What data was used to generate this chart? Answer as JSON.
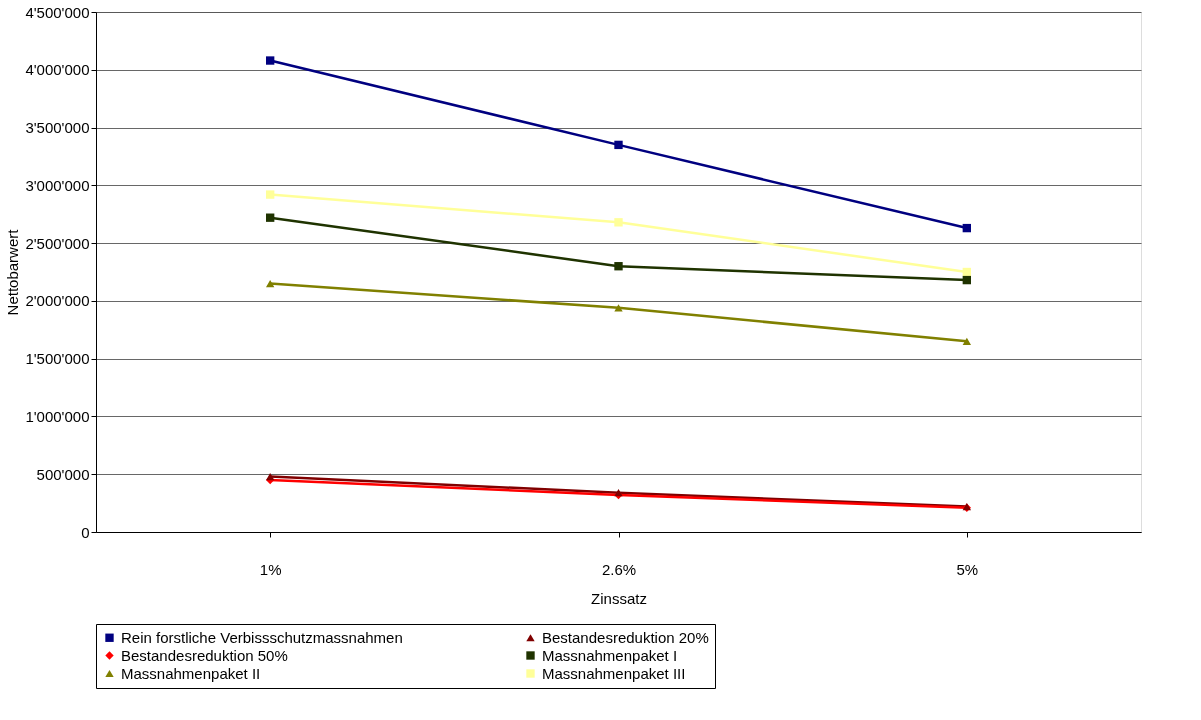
{
  "chart_data": {
    "type": "line",
    "xlabel": "Zinssatz",
    "ylabel": "Nettobarwert",
    "categories": [
      "1%",
      "2.6%",
      "5%"
    ],
    "ylim": [
      0,
      4500000
    ],
    "yticks": [
      {
        "value": 0,
        "label": "0"
      },
      {
        "value": 500000,
        "label": "500'000"
      },
      {
        "value": 1000000,
        "label": "1'000'000"
      },
      {
        "value": 1500000,
        "label": "1'500'000"
      },
      {
        "value": 2000000,
        "label": "2'000'000"
      },
      {
        "value": 2500000,
        "label": "2'500'000"
      },
      {
        "value": 3000000,
        "label": "3'000'000"
      },
      {
        "value": 3500000,
        "label": "3'500'000"
      },
      {
        "value": 4000000,
        "label": "4'000'000"
      },
      {
        "value": 4500000,
        "label": "4'500'000"
      }
    ],
    "grid": "y",
    "legend": "bottom",
    "line_style": "solid",
    "series": [
      {
        "name": "Rein forstliche Verbissschutzmassnahmen",
        "color": "#000080",
        "marker": "square",
        "values": [
          4080000,
          3350000,
          2630000
        ]
      },
      {
        "name": "Bestandesreduktion 20%",
        "color": "#800000",
        "marker": "triangle",
        "values": [
          480000,
          340000,
          220000
        ]
      },
      {
        "name": "Bestandesreduktion 50%",
        "color": "#ff0000",
        "marker": "diamond",
        "values": [
          450000,
          320000,
          210000
        ]
      },
      {
        "name": "Massnahmenpaket I",
        "color": "#1f3300",
        "marker": "square",
        "values": [
          2720000,
          2300000,
          2180000
        ]
      },
      {
        "name": "Massnahmenpaket II",
        "color": "#808000",
        "marker": "triangle",
        "values": [
          2150000,
          1940000,
          1650000
        ]
      },
      {
        "name": "Massnahmenpaket III",
        "color": "#ffff99",
        "marker": "square",
        "values": [
          2920000,
          2680000,
          2250000
        ]
      }
    ]
  }
}
